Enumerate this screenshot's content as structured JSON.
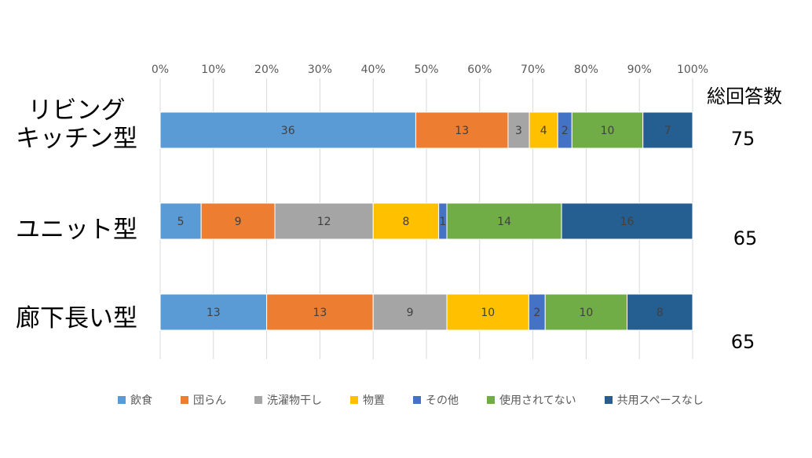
{
  "chart_data": {
    "type": "bar",
    "orientation": "horizontal",
    "stacking": "percent",
    "categories": [
      "リビング\nキッチン型",
      "ユニット型",
      "廊下長い型"
    ],
    "x_ticks": [
      "0%",
      "10%",
      "20%",
      "30%",
      "40%",
      "50%",
      "60%",
      "70%",
      "80%",
      "90%",
      "100%"
    ],
    "xlim": [
      0,
      100
    ],
    "series": [
      {
        "name": "飲食",
        "color": "#5B9BD5",
        "values": [
          36,
          5,
          13
        ]
      },
      {
        "name": "団らん",
        "color": "#ED7D31",
        "values": [
          13,
          9,
          13
        ]
      },
      {
        "name": "洗濯物干し",
        "color": "#A5A5A5",
        "values": [
          3,
          12,
          9
        ]
      },
      {
        "name": "物置",
        "color": "#FFC000",
        "values": [
          4,
          8,
          10
        ]
      },
      {
        "name": "その他",
        "color": "#4472C4",
        "values": [
          2,
          1,
          2
        ]
      },
      {
        "name": "使用されてない",
        "color": "#70AD47",
        "values": [
          10,
          14,
          10
        ]
      },
      {
        "name": "共用スペースなし",
        "color": "#255E91",
        "values": [
          7,
          16,
          8
        ]
      }
    ],
    "legend_position": "bottom",
    "grid": true
  },
  "labels": {
    "row1_line1": "リビング",
    "row1_line2": "キッチン型",
    "row2": "ユニット型",
    "row3": "廊下長い型",
    "total_header": "総回答数"
  },
  "totals": [
    "75",
    "65",
    "65"
  ],
  "legend": [
    {
      "name": "飲食",
      "color": "#5B9BD5"
    },
    {
      "name": "団らん",
      "color": "#ED7D31"
    },
    {
      "name": "洗濯物干し",
      "color": "#A5A5A5"
    },
    {
      "name": "物置",
      "color": "#FFC000"
    },
    {
      "name": "その他",
      "color": "#4472C4"
    },
    {
      "name": "使用されてない",
      "color": "#70AD47"
    },
    {
      "name": "共用スペースなし",
      "color": "#255E91"
    }
  ]
}
